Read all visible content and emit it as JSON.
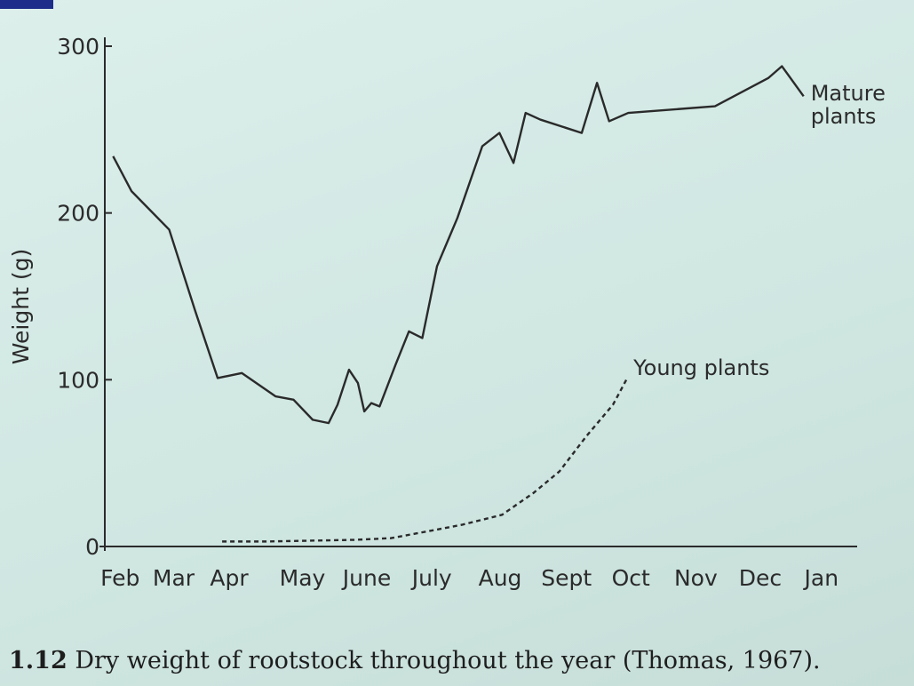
{
  "chart_data": {
    "type": "line",
    "ylabel": "Weight (g)",
    "figure_number": "1.12",
    "caption": "Dry weight of rootstock throughout the year (Thomas, 1967).",
    "xlim": [
      -0.24,
      11.56
    ],
    "xticks": [
      {
        "value": 0,
        "label": "Feb"
      },
      {
        "value": 0.84,
        "label": "Mar"
      },
      {
        "value": 1.71,
        "label": "Apr"
      },
      {
        "value": 2.86,
        "label": "May"
      },
      {
        "value": 3.87,
        "label": "June"
      },
      {
        "value": 4.89,
        "label": "July"
      },
      {
        "value": 5.96,
        "label": "Aug"
      },
      {
        "value": 7.0,
        "label": "Sept"
      },
      {
        "value": 8.01,
        "label": "Oct"
      },
      {
        "value": 9.03,
        "label": "Nov"
      },
      {
        "value": 10.04,
        "label": "Dec"
      },
      {
        "value": 11.0,
        "label": "Jan"
      }
    ],
    "ylim": [
      0,
      300
    ],
    "yticks": [
      0,
      100,
      200,
      300
    ],
    "grid": false,
    "series": [
      {
        "name": "Mature plants",
        "color": "#2a2a2a",
        "dash": false,
        "x": [
          -0.11,
          0.18,
          0.77,
          1.18,
          1.53,
          1.91,
          2.44,
          2.72,
          3.02,
          3.27,
          3.41,
          3.59,
          3.73,
          3.83,
          3.94,
          4.07,
          4.32,
          4.53,
          4.74,
          4.97,
          5.29,
          5.68,
          5.95,
          6.17,
          6.36,
          6.59,
          7.24,
          7.48,
          7.67,
          7.97,
          9.33,
          10.17,
          10.38,
          10.72
        ],
        "values": [
          234,
          213,
          190,
          141,
          101,
          104,
          90,
          88,
          76,
          74,
          85,
          106,
          98,
          81,
          86,
          84,
          109,
          129,
          125,
          168,
          197,
          240,
          248,
          230,
          260,
          256,
          248,
          278,
          255,
          260,
          264,
          281,
          288,
          270
        ]
      },
      {
        "name": "Young plants",
        "color": "#2a2a2a",
        "dash": true,
        "x": [
          1.6,
          2.3,
          3.69,
          4.25,
          4.81,
          5.36,
          5.99,
          6.48,
          6.89,
          7.31,
          7.73,
          7.94
        ],
        "values": [
          3,
          3,
          4,
          5,
          9,
          13,
          19,
          32,
          45,
          66,
          85,
          100
        ]
      }
    ]
  }
}
